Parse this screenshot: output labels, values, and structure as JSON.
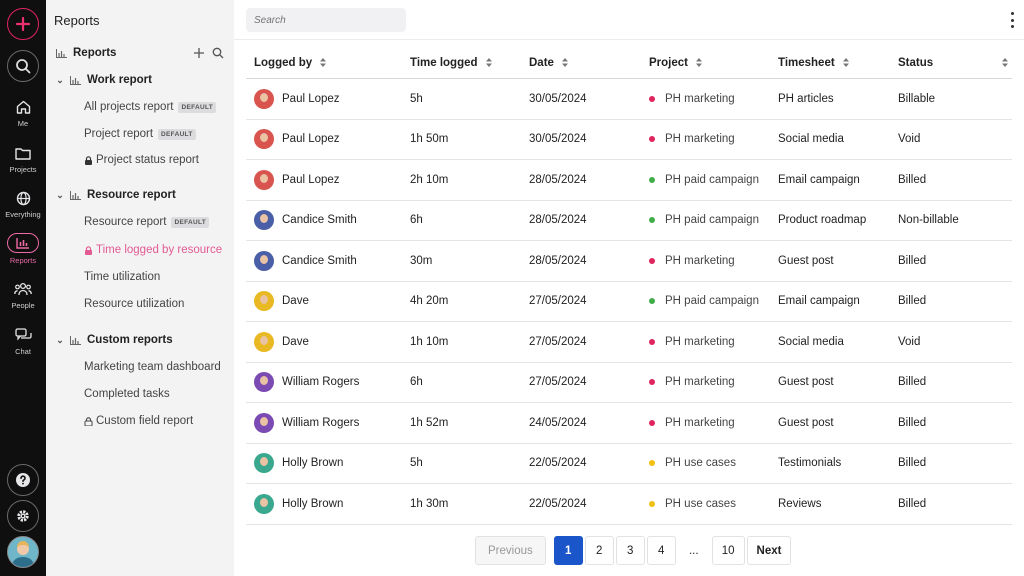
{
  "rail": {
    "items": [
      {
        "label": "Me",
        "icon": "home-icon"
      },
      {
        "label": "Projects",
        "icon": "folder-icon"
      },
      {
        "label": "Everything",
        "icon": "globe-icon"
      },
      {
        "label": "Reports",
        "icon": "reports-icon",
        "active": true
      },
      {
        "label": "People",
        "icon": "people-icon"
      },
      {
        "label": "Chat",
        "icon": "chat-icon"
      }
    ],
    "accent": "#ec6aa6"
  },
  "sidebar": {
    "title": "Reports",
    "reports_header": "Reports",
    "groups": [
      {
        "label": "Work report",
        "items": [
          {
            "label": "All projects report",
            "badge": "DEFAULT"
          },
          {
            "label": "Project report",
            "badge": "DEFAULT"
          },
          {
            "label": "Project status report",
            "locked": true
          }
        ]
      },
      {
        "label": "Resource report",
        "items": [
          {
            "label": "Resource report",
            "badge": "DEFAULT"
          },
          {
            "label": "Time logged by resource",
            "locked": true,
            "active": true
          },
          {
            "label": "Time utilization"
          },
          {
            "label": "Resource utilization"
          }
        ]
      },
      {
        "label": "Custom reports",
        "items": [
          {
            "label": "Marketing team dashboard"
          },
          {
            "label": "Completed tasks"
          },
          {
            "label": "Custom field report",
            "locked": true
          }
        ]
      }
    ]
  },
  "search": {
    "placeholder": "Search"
  },
  "table": {
    "headers": [
      "Logged by",
      "Time logged",
      "Date",
      "Project",
      "Timesheet",
      "Status"
    ],
    "rows": [
      {
        "user": "Paul Lopez",
        "time": "5h",
        "date": "30/05/2024",
        "project": "PH marketing",
        "dot": "#e0245e",
        "timesheet": "PH articles",
        "status": "Billable",
        "avatar": "#d9534f"
      },
      {
        "user": "Paul Lopez",
        "time": "1h 50m",
        "date": "30/05/2024",
        "project": "PH marketing",
        "dot": "#e0245e",
        "timesheet": "Social media",
        "status": "Void",
        "avatar": "#d9534f"
      },
      {
        "user": "Paul Lopez",
        "time": "2h 10m",
        "date": "28/05/2024",
        "project": "PH paid campaign",
        "dot": "#3fae49",
        "timesheet": "Email campaign",
        "status": "Billed",
        "avatar": "#d9534f"
      },
      {
        "user": "Candice Smith",
        "time": "6h",
        "date": "28/05/2024",
        "project": "PH paid campaign",
        "dot": "#3fae49",
        "timesheet": "Product roadmap",
        "status": "Non-billable",
        "avatar": "#4a5fa8"
      },
      {
        "user": "Candice Smith",
        "time": "30m",
        "date": "28/05/2024",
        "project": "PH marketing",
        "dot": "#e0245e",
        "timesheet": "Guest post",
        "status": "Billed",
        "avatar": "#4a5fa8"
      },
      {
        "user": "Dave",
        "time": "4h 20m",
        "date": "27/05/2024",
        "project": "PH paid campaign",
        "dot": "#3fae49",
        "timesheet": "Email campaign",
        "status": "Billed",
        "avatar": "#e8b923"
      },
      {
        "user": "Dave",
        "time": "1h 10m",
        "date": "27/05/2024",
        "project": "PH marketing",
        "dot": "#e0245e",
        "timesheet": "Social media",
        "status": "Void",
        "avatar": "#e8b923"
      },
      {
        "user": "William Rogers",
        "time": "6h",
        "date": "27/05/2024",
        "project": "PH marketing",
        "dot": "#e0245e",
        "timesheet": "Guest post",
        "status": "Billed",
        "avatar": "#7b4bb3"
      },
      {
        "user": "William Rogers",
        "time": "1h 52m",
        "date": "24/05/2024",
        "project": "PH marketing",
        "dot": "#e0245e",
        "timesheet": "Guest post",
        "status": "Billed",
        "avatar": "#7b4bb3"
      },
      {
        "user": "Holly Brown",
        "time": "5h",
        "date": "22/05/2024",
        "project": "PH use cases",
        "dot": "#f2c012",
        "timesheet": "Testimonials",
        "status": "Billed",
        "avatar": "#3aa88f"
      },
      {
        "user": "Holly Brown",
        "time": "1h 30m",
        "date": "22/05/2024",
        "project": "PH use cases",
        "dot": "#f2c012",
        "timesheet": "Reviews",
        "status": "Billed",
        "avatar": "#3aa88f"
      }
    ]
  },
  "pagination": {
    "previous": "Previous",
    "pages": [
      "1",
      "2",
      "3",
      "4",
      "...",
      "10"
    ],
    "current": "1",
    "next": "Next"
  }
}
